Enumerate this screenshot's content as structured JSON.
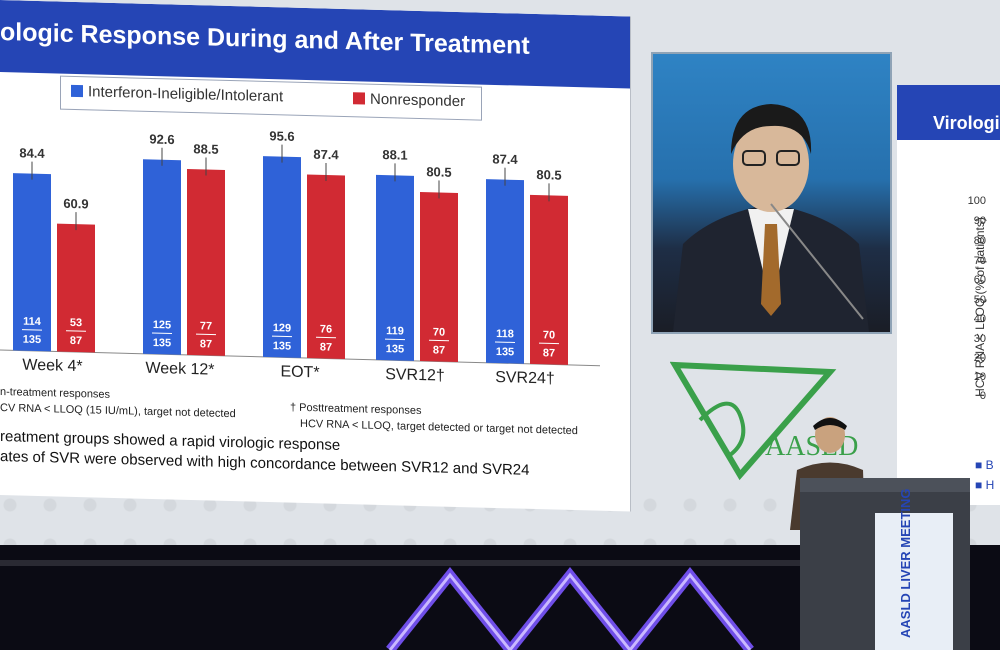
{
  "slide": {
    "title": "ologic Response During and After Treatment",
    "legend": [
      {
        "label": "Interferon-Ineligible/Intolerant",
        "color": "#2f62d8"
      },
      {
        "label": "Nonresponder",
        "color": "#d12a33"
      }
    ],
    "footnotes": {
      "left_line1": "n-treatment responses",
      "left_line2": "CV RNA < LLOQ (15 IU/mL), target not detected",
      "right_line1": "† Posttreatment responses",
      "right_line2": "HCV RNA < LLOQ, target detected or target not detected"
    },
    "bullets": [
      "reatment groups showed a rapid virologic response",
      "ates of SVR were observed with high concordance between SVR12 and SVR24"
    ]
  },
  "chart_data": {
    "type": "bar",
    "categories": [
      "Week 4*",
      "Week 12*",
      "EOT*",
      "SVR12†",
      "SVR24†"
    ],
    "series": [
      {
        "name": "Interferon-Ineligible/Intolerant",
        "values": [
          84.4,
          92.6,
          95.6,
          88.1,
          87.4
        ],
        "fractions": [
          "114/135",
          "125/135",
          "129/135",
          "119/135",
          "118/135"
        ]
      },
      {
        "name": "Nonresponder",
        "values": [
          60.9,
          88.5,
          87.4,
          80.5,
          80.5
        ],
        "fractions": [
          "53/87",
          "77/87",
          "76/87",
          "70/87",
          "70/87"
        ]
      }
    ],
    "ylim": [
      0,
      100
    ],
    "colors": {
      "interferon": "#2f62d8",
      "nonresponder": "#d12a33"
    }
  },
  "right_slide": {
    "title": "Virologi",
    "ylabel": "HCV RNA < LLOQ (% of patients)",
    "yticks": [
      "100",
      "90",
      "80",
      "70",
      "60",
      "50",
      "40",
      "30",
      "20",
      "10",
      "0"
    ],
    "legend_letters": [
      "B",
      "H"
    ]
  },
  "logo": {
    "text": "AASLD",
    "color": "#3aa04a"
  },
  "podium_sign": {
    "text": "AASLD LIVER MEETING"
  }
}
